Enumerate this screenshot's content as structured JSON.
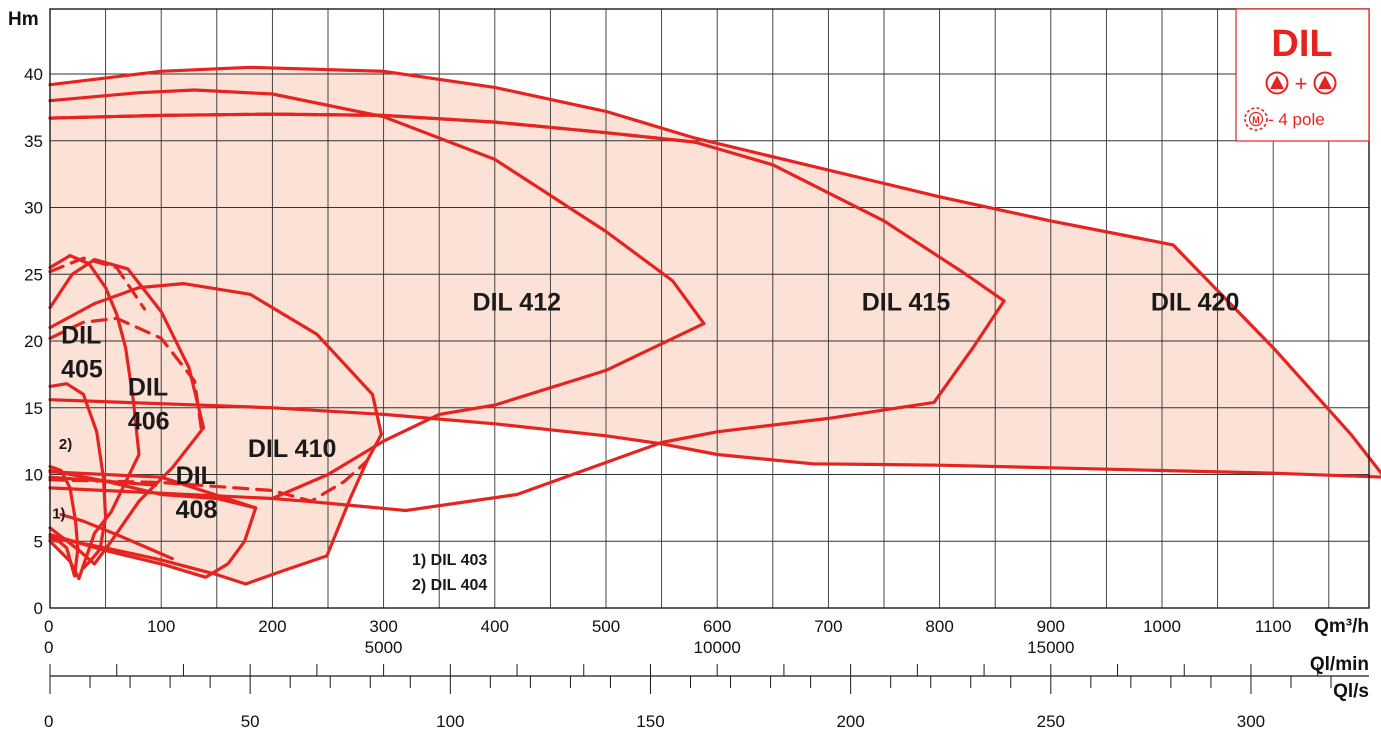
{
  "chart_data": {
    "type": "line",
    "title": "",
    "ylabel": "Hm",
    "xlabel": "Qm³/h",
    "ylim": [
      0,
      41
    ],
    "xlim": [
      0,
      1180
    ],
    "grid": true,
    "yticks": [
      0,
      5,
      10,
      15,
      20,
      25,
      30,
      35,
      40
    ],
    "xticks": [
      0,
      100,
      200,
      300,
      400,
      500,
      600,
      700,
      800,
      900,
      1000,
      1100
    ],
    "secondary_axes": [
      {
        "label": "Ql/min",
        "ticks": [
          0,
          5000,
          10000,
          15000
        ],
        "tick_labels": [
          "0",
          "5000",
          "10000",
          "15000"
        ],
        "minor_step": 1000,
        "minor_max": 19000
      },
      {
        "label": "Ql/s",
        "ticks": [
          0,
          50,
          100,
          150,
          200,
          250,
          300
        ],
        "tick_labels": [
          "0",
          "50",
          "100",
          "150",
          "200",
          "250",
          "300"
        ],
        "minor_step": 10,
        "minor_max": 320
      }
    ],
    "legend": {
      "title": "DIL",
      "symbol_line": "+",
      "motor_text": "- 4 pole",
      "color": "#e52421",
      "placement": "top-right"
    },
    "notes": [
      "1) DIL 403",
      "2) DIL 404"
    ],
    "series": [
      {
        "name": "DIL 420",
        "label_lines": [
          "DIL 420"
        ],
        "label_at": [
          990,
          22.3
        ],
        "outline": [
          [
            0,
            39.2
          ],
          [
            100,
            40.2
          ],
          [
            180,
            40.5
          ],
          [
            300,
            40.2
          ],
          [
            400,
            39.0
          ],
          [
            500,
            37.2
          ],
          [
            580,
            35.2
          ],
          [
            700,
            32.8
          ],
          [
            800,
            30.8
          ],
          [
            900,
            29.0
          ],
          [
            1010,
            27.2
          ],
          [
            1100,
            19.5
          ],
          [
            1170,
            13.0
          ],
          [
            1200,
            9.8
          ],
          [
            1100,
            10.1
          ],
          [
            1000,
            10.3
          ],
          [
            900,
            10.5
          ],
          [
            800,
            10.7
          ],
          [
            686,
            10.8
          ],
          [
            600,
            11.5
          ],
          [
            550,
            12.3
          ],
          [
            500,
            12.9
          ],
          [
            400,
            13.8
          ],
          [
            300,
            14.5
          ],
          [
            200,
            15.0
          ],
          [
            100,
            15.3
          ],
          [
            0,
            15.6
          ]
        ],
        "max_curve": [
          [
            0,
            39.2
          ],
          [
            100,
            40.2
          ],
          [
            180,
            40.5
          ],
          [
            300,
            40.2
          ],
          [
            400,
            39.0
          ],
          [
            500,
            37.2
          ],
          [
            580,
            35.2
          ],
          [
            700,
            32.8
          ],
          [
            800,
            30.8
          ],
          [
            900,
            29.0
          ],
          [
            1010,
            27.2
          ]
        ],
        "min_curve": [
          [
            0,
            15.6
          ],
          [
            100,
            15.3
          ],
          [
            200,
            15.0
          ],
          [
            300,
            14.5
          ],
          [
            400,
            13.8
          ],
          [
            500,
            12.9
          ],
          [
            550,
            12.3
          ],
          [
            600,
            11.5
          ],
          [
            686,
            10.8
          ],
          [
            800,
            10.7
          ],
          [
            900,
            10.5
          ],
          [
            1000,
            10.3
          ],
          [
            1100,
            10.1
          ],
          [
            1200,
            9.8
          ]
        ]
      },
      {
        "name": "DIL 415",
        "label_lines": [
          "DIL 415"
        ],
        "label_at": [
          730,
          22.3
        ],
        "dashed": [
          [
            0,
            36.7
          ],
          [
            100,
            36.9
          ],
          [
            200,
            37.0
          ],
          [
            300,
            36.9
          ],
          [
            400,
            36.4
          ],
          [
            500,
            35.6
          ],
          [
            580,
            34.9
          ]
        ],
        "segments": [
          [
            [
              0,
              36.7
            ],
            [
              100,
              36.9
            ],
            [
              200,
              37.0
            ],
            [
              300,
              36.9
            ],
            [
              400,
              36.4
            ],
            [
              500,
              35.6
            ],
            [
              580,
              34.9
            ],
            [
              650,
              33.2
            ],
            [
              750,
              29.0
            ],
            [
              820,
              25.2
            ],
            [
              858,
              23.0
            ],
            [
              830,
              19.5
            ],
            [
              795,
              15.4
            ],
            [
              700,
              14.2
            ],
            [
              600,
              13.2
            ],
            [
              550,
              12.4
            ]
          ]
        ]
      },
      {
        "name": "DIL 412",
        "label_lines": [
          "DIL 412"
        ],
        "label_at": [
          380,
          22.3
        ],
        "segments": [
          [
            [
              0,
              38.0
            ],
            [
              80,
              38.6
            ],
            [
              130,
              38.8
            ],
            [
              200,
              38.5
            ],
            [
              300,
              36.8
            ],
            [
              400,
              33.6
            ],
            [
              500,
              28.2
            ],
            [
              560,
              24.5
            ],
            [
              588,
              21.3
            ],
            [
              500,
              17.8
            ],
            [
              400,
              15.2
            ],
            [
              350,
              14.5
            ],
            [
              300,
              12.5
            ],
            [
              250,
              10.0
            ],
            [
              200,
              8.2
            ]
          ],
          [
            [
              0,
              9.0
            ],
            [
              100,
              8.6
            ],
            [
              200,
              8.2
            ],
            [
              230,
              8.0
            ],
            [
              320,
              7.3
            ],
            [
              420,
              8.5
            ],
            [
              550,
              12.4
            ]
          ]
        ]
      },
      {
        "name": "DIL 410",
        "label_lines": [
          "DIL 410"
        ],
        "label_at": [
          178,
          11.3
        ],
        "dashed": [
          [
            0,
            9.6
          ],
          [
            100,
            9.4
          ],
          [
            200,
            8.8
          ],
          [
            235,
            8.0
          ],
          [
            265,
            9.5
          ],
          [
            285,
            11.0
          ]
        ],
        "segments": [
          [
            [
              0,
              21.0
            ],
            [
              40,
              22.8
            ],
            [
              80,
              24.0
            ],
            [
              120,
              24.3
            ],
            [
              180,
              23.5
            ],
            [
              240,
              20.5
            ],
            [
              290,
              16.0
            ],
            [
              298,
              13.0
            ],
            [
              285,
              11.0
            ],
            [
              270,
              8.2
            ],
            [
              249,
              3.9
            ],
            [
              210,
              2.8
            ],
            [
              176,
              1.8
            ],
            [
              150,
              2.5
            ],
            [
              100,
              3.6
            ],
            [
              50,
              4.5
            ],
            [
              0,
              5.3
            ]
          ]
        ]
      },
      {
        "name": "DIL 408",
        "label_lines": [
          "DIL",
          "408"
        ],
        "label_at": [
          113,
          9.3
        ],
        "dashed": [
          [
            0,
            20.2
          ],
          [
            30,
            21.4
          ],
          [
            60,
            21.7
          ],
          [
            100,
            20.2
          ],
          [
            130,
            17.0
          ],
          [
            136,
            13.5
          ]
        ],
        "segments": [
          [
            [
              0,
              10.3
            ],
            [
              50,
              9.5
            ],
            [
              100,
              8.5
            ],
            [
              150,
              8.2
            ],
            [
              185,
              7.5
            ],
            [
              175,
              5.0
            ],
            [
              160,
              3.3
            ],
            [
              140,
              2.3
            ],
            [
              100,
              3.3
            ],
            [
              50,
              4.3
            ],
            [
              0,
              5.5
            ]
          ],
          [
            [
              0,
              10.2
            ],
            [
              100,
              9.8
            ],
            [
              185,
              7.5
            ]
          ]
        ]
      },
      {
        "name": "DIL 406",
        "label_lines": [
          "DIL",
          "406"
        ],
        "label_at": [
          70,
          15.9
        ],
        "dashed": [
          [
            0,
            25.2
          ],
          [
            30,
            26.2
          ],
          [
            60,
            25.5
          ],
          [
            85,
            22.4
          ]
        ],
        "segments": [
          [
            [
              0,
              22.5
            ],
            [
              20,
              25.0
            ],
            [
              40,
              26.1
            ],
            [
              70,
              25.4
            ],
            [
              100,
              22.2
            ],
            [
              125,
              18.0
            ],
            [
              138,
              13.5
            ],
            [
              110,
              10.5
            ],
            [
              80,
              8.0
            ],
            [
              55,
              5.0
            ],
            [
              40,
              3.3
            ],
            [
              25,
              4.4
            ],
            [
              0,
              6.0
            ]
          ]
        ]
      },
      {
        "name": "DIL 405",
        "label_lines": [
          "DIL",
          "405"
        ],
        "label_at": [
          10,
          19.8
        ],
        "segments": [
          [
            [
              0,
              25.5
            ],
            [
              18,
              26.4
            ],
            [
              35,
              25.8
            ],
            [
              50,
              24.0
            ],
            [
              60,
              22.0
            ],
            [
              68,
              19.5
            ],
            [
              75,
              15.5
            ],
            [
              80,
              11.5
            ],
            [
              55,
              7.2
            ],
            [
              40,
              5.6
            ],
            [
              26,
              2.2
            ],
            [
              18,
              3.5
            ],
            [
              0,
              5.0
            ]
          ],
          [
            [
              0,
              9.8
            ],
            [
              50,
              9.5
            ],
            [
              95,
              9.2
            ]
          ]
        ]
      },
      {
        "name": "DIL 404",
        "label_lines": [
          "2)"
        ],
        "label_at": [
          8,
          11.9
        ],
        "segments": [
          [
            [
              0,
              16.6
            ],
            [
              15,
              16.8
            ],
            [
              30,
              16.0
            ],
            [
              42,
              13.2
            ],
            [
              48,
              9.8
            ],
            [
              50,
              6.8
            ],
            [
              45,
              4.4
            ],
            [
              36,
              3.5
            ],
            [
              30,
              3.0
            ]
          ]
        ]
      },
      {
        "name": "DIL 403",
        "label_lines": [
          "1)"
        ],
        "label_at": [
          2,
          6.7
        ],
        "segments": [
          [
            [
              0,
              10.6
            ],
            [
              10,
              10.3
            ],
            [
              18,
              9.0
            ],
            [
              23,
              6.5
            ],
            [
              25,
              4.4
            ],
            [
              22,
              2.4
            ],
            [
              15,
              4.5
            ],
            [
              8,
              5.0
            ],
            [
              0,
              5.1
            ]
          ],
          [
            [
              10,
              7.0
            ],
            [
              30,
              6.5
            ],
            [
              60,
              5.5
            ],
            [
              110,
              3.7
            ]
          ]
        ]
      }
    ]
  }
}
